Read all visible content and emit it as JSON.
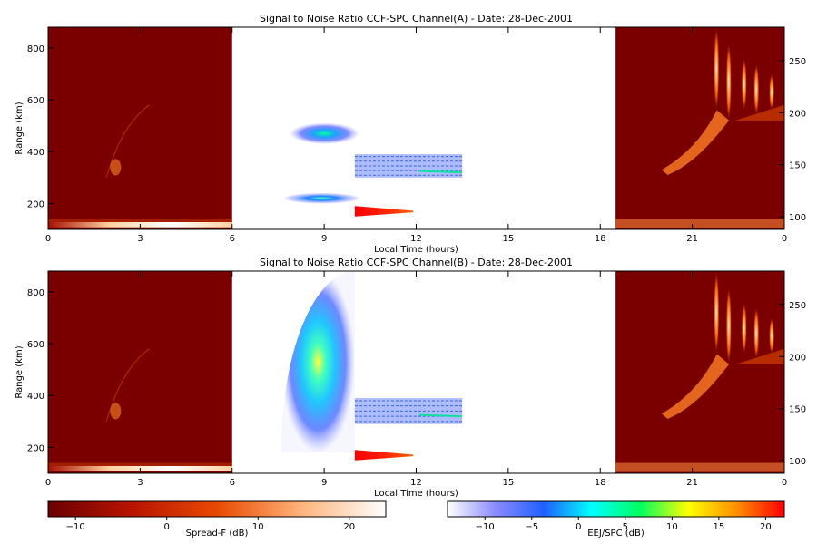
{
  "chart_data": [
    {
      "type": "heatmap",
      "title": "Signal to Noise Ratio CCF-SPC Channel(A) - Date: 28-Dec-2001",
      "xlabel": "Local Time (hours)",
      "ylabel": "Range (km)",
      "xlim": [
        0,
        24
      ],
      "ylim": [
        100,
        880
      ],
      "x_ticks": [
        "0",
        "3",
        "6",
        "9",
        "12",
        "15",
        "18",
        "21",
        "0"
      ],
      "y_ticks": [
        200,
        400,
        600,
        800
      ],
      "y2lim": [
        88,
        282
      ],
      "y2_ticks": [
        100,
        150,
        200,
        250
      ],
      "regions": [
        {
          "name": "Spread-F",
          "x_range": [
            0,
            6
          ],
          "scale": "Spread-F (dB)"
        },
        {
          "name": "EEJ/SPC",
          "x_range": [
            6,
            18.5
          ],
          "scale": "EEJ/SPC (dB)"
        },
        {
          "name": "Spread-F",
          "x_range": [
            18.5,
            24
          ],
          "scale": "Spread-F (dB)"
        }
      ],
      "features": [
        {
          "x": [
            7.8,
            10.0
          ],
          "y": [
            430,
            510
          ],
          "level_db": 0
        },
        {
          "x": [
            7.6,
            10.0
          ],
          "y": [
            200,
            240
          ],
          "level_db": 0
        },
        {
          "x": [
            10.0,
            13.5
          ],
          "y": [
            300,
            390
          ],
          "level_db": -5
        },
        {
          "x": [
            10.0,
            11.9
          ],
          "y": [
            150,
            190
          ],
          "level_db": 22
        }
      ]
    },
    {
      "type": "heatmap",
      "title": "Signal to Noise Ratio CCF-SPC Channel(B) - Date: 28-Dec-2001",
      "xlabel": "Local Time (hours)",
      "ylabel": "Range (km)",
      "xlim": [
        0,
        24
      ],
      "ylim": [
        100,
        880
      ],
      "x_ticks": [
        "0",
        "3",
        "6",
        "9",
        "12",
        "15",
        "18",
        "21",
        "0"
      ],
      "y_ticks": [
        200,
        400,
        600,
        800
      ],
      "y2lim": [
        88,
        282
      ],
      "y2_ticks": [
        100,
        150,
        200,
        250
      ],
      "regions": [
        {
          "name": "Spread-F",
          "x_range": [
            0,
            6
          ],
          "scale": "Spread-F (dB)"
        },
        {
          "name": "EEJ/SPC",
          "x_range": [
            6,
            18.5
          ],
          "scale": "EEJ/SPC (dB)"
        },
        {
          "name": "Spread-F",
          "x_range": [
            18.5,
            24
          ],
          "scale": "Spread-F (dB)"
        }
      ],
      "features": [
        {
          "x": [
            7.6,
            10.0
          ],
          "y": [
            180,
            880
          ],
          "level_db": 0
        },
        {
          "x": [
            10.0,
            13.5
          ],
          "y": [
            290,
            390
          ],
          "level_db": -5
        },
        {
          "x": [
            10.0,
            11.9
          ],
          "y": [
            150,
            190
          ],
          "level_db": 22
        }
      ]
    }
  ],
  "colorbars": [
    {
      "label": "Spread-F (dB)",
      "min": -13,
      "max": 24,
      "ticks": [
        -10,
        0,
        10,
        20
      ],
      "colors": [
        "#6b0000",
        "#b81400",
        "#e84a00",
        "#ffb37a",
        "#ffffff"
      ]
    },
    {
      "label": "EEJ/SPC (dB)",
      "min": -14,
      "max": 22,
      "ticks": [
        -10,
        -5,
        0,
        5,
        10,
        15,
        20
      ],
      "colors": [
        "#ffffff",
        "#8a8aff",
        "#2060ff",
        "#00ffff",
        "#00ff60",
        "#ffff00",
        "#ff9000",
        "#ff0000"
      ]
    }
  ]
}
